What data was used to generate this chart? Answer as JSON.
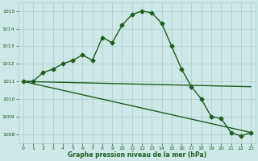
{
  "line1_x": [
    0,
    1,
    2,
    3,
    4,
    5,
    6,
    7,
    8,
    9,
    10,
    11,
    12,
    13,
    14,
    15,
    16,
    17,
    18,
    19,
    20,
    21,
    22,
    23
  ],
  "line1_y": [
    1011.0,
    1011.0,
    1011.5,
    1011.7,
    1012.0,
    1012.2,
    1012.5,
    1012.2,
    1013.5,
    1013.2,
    1014.2,
    1014.8,
    1015.0,
    1014.9,
    1014.3,
    1013.0,
    1011.7,
    1010.7,
    1010.0,
    1009.0,
    1008.9,
    1008.1,
    1007.9,
    1008.1
  ],
  "line2_x": [
    0,
    23
  ],
  "line2_y": [
    1011.0,
    1008.1
  ],
  "line3_x": [
    0,
    23
  ],
  "line3_y": [
    1011.0,
    1010.7
  ],
  "bg_color": "#cce9e7",
  "grid_color": "#aaccca",
  "line_color": "#1e5c1e",
  "xlabel": "Graphe pression niveau de la mer (hPa)",
  "xlim": [
    -0.5,
    23.5
  ],
  "ylim": [
    1007.5,
    1015.5
  ],
  "yticks": [
    1008,
    1009,
    1010,
    1011,
    1012,
    1013,
    1014,
    1015
  ],
  "xticks": [
    0,
    1,
    2,
    3,
    4,
    5,
    6,
    7,
    8,
    9,
    10,
    11,
    12,
    13,
    14,
    15,
    16,
    17,
    18,
    19,
    20,
    21,
    22,
    23
  ],
  "marker": "D",
  "markersize": 2.5,
  "linewidth": 1.0
}
